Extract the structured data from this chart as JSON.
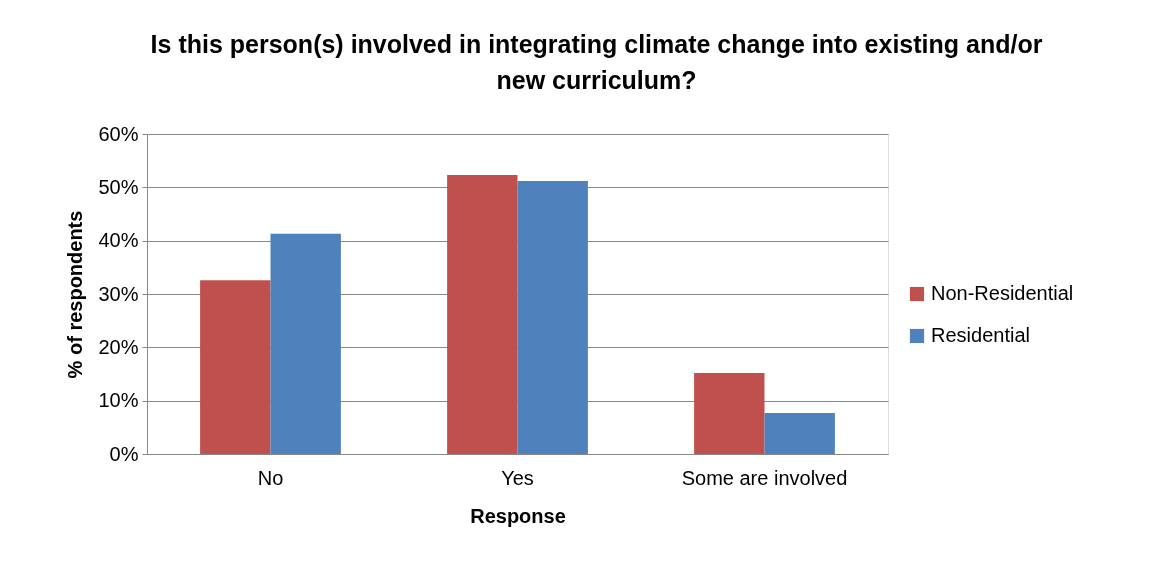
{
  "chart_data": {
    "type": "bar",
    "title": "Is this person(s) involved in integrating climate change into existing and/or new curriculum?",
    "xlabel": "Response",
    "ylabel": "% of respondents",
    "categories": [
      "No",
      "Yes",
      "Some are involved"
    ],
    "series": [
      {
        "name": "Non-Residential",
        "color": "#c0504d",
        "values": [
          32.6,
          52.3,
          15.2
        ]
      },
      {
        "name": "Residential",
        "color": "#4f81bd",
        "values": [
          41.3,
          51.2,
          7.7
        ]
      }
    ],
    "ylim": [
      0,
      60
    ],
    "yticks": [
      {
        "value": 0,
        "label": "0%"
      },
      {
        "value": 10,
        "label": "10%"
      },
      {
        "value": 20,
        "label": "20%"
      },
      {
        "value": 30,
        "label": "30%"
      },
      {
        "value": 40,
        "label": "40%"
      },
      {
        "value": 50,
        "label": "50%"
      },
      {
        "value": 60,
        "label": "60%"
      }
    ],
    "grid": "y",
    "legend": "right"
  }
}
